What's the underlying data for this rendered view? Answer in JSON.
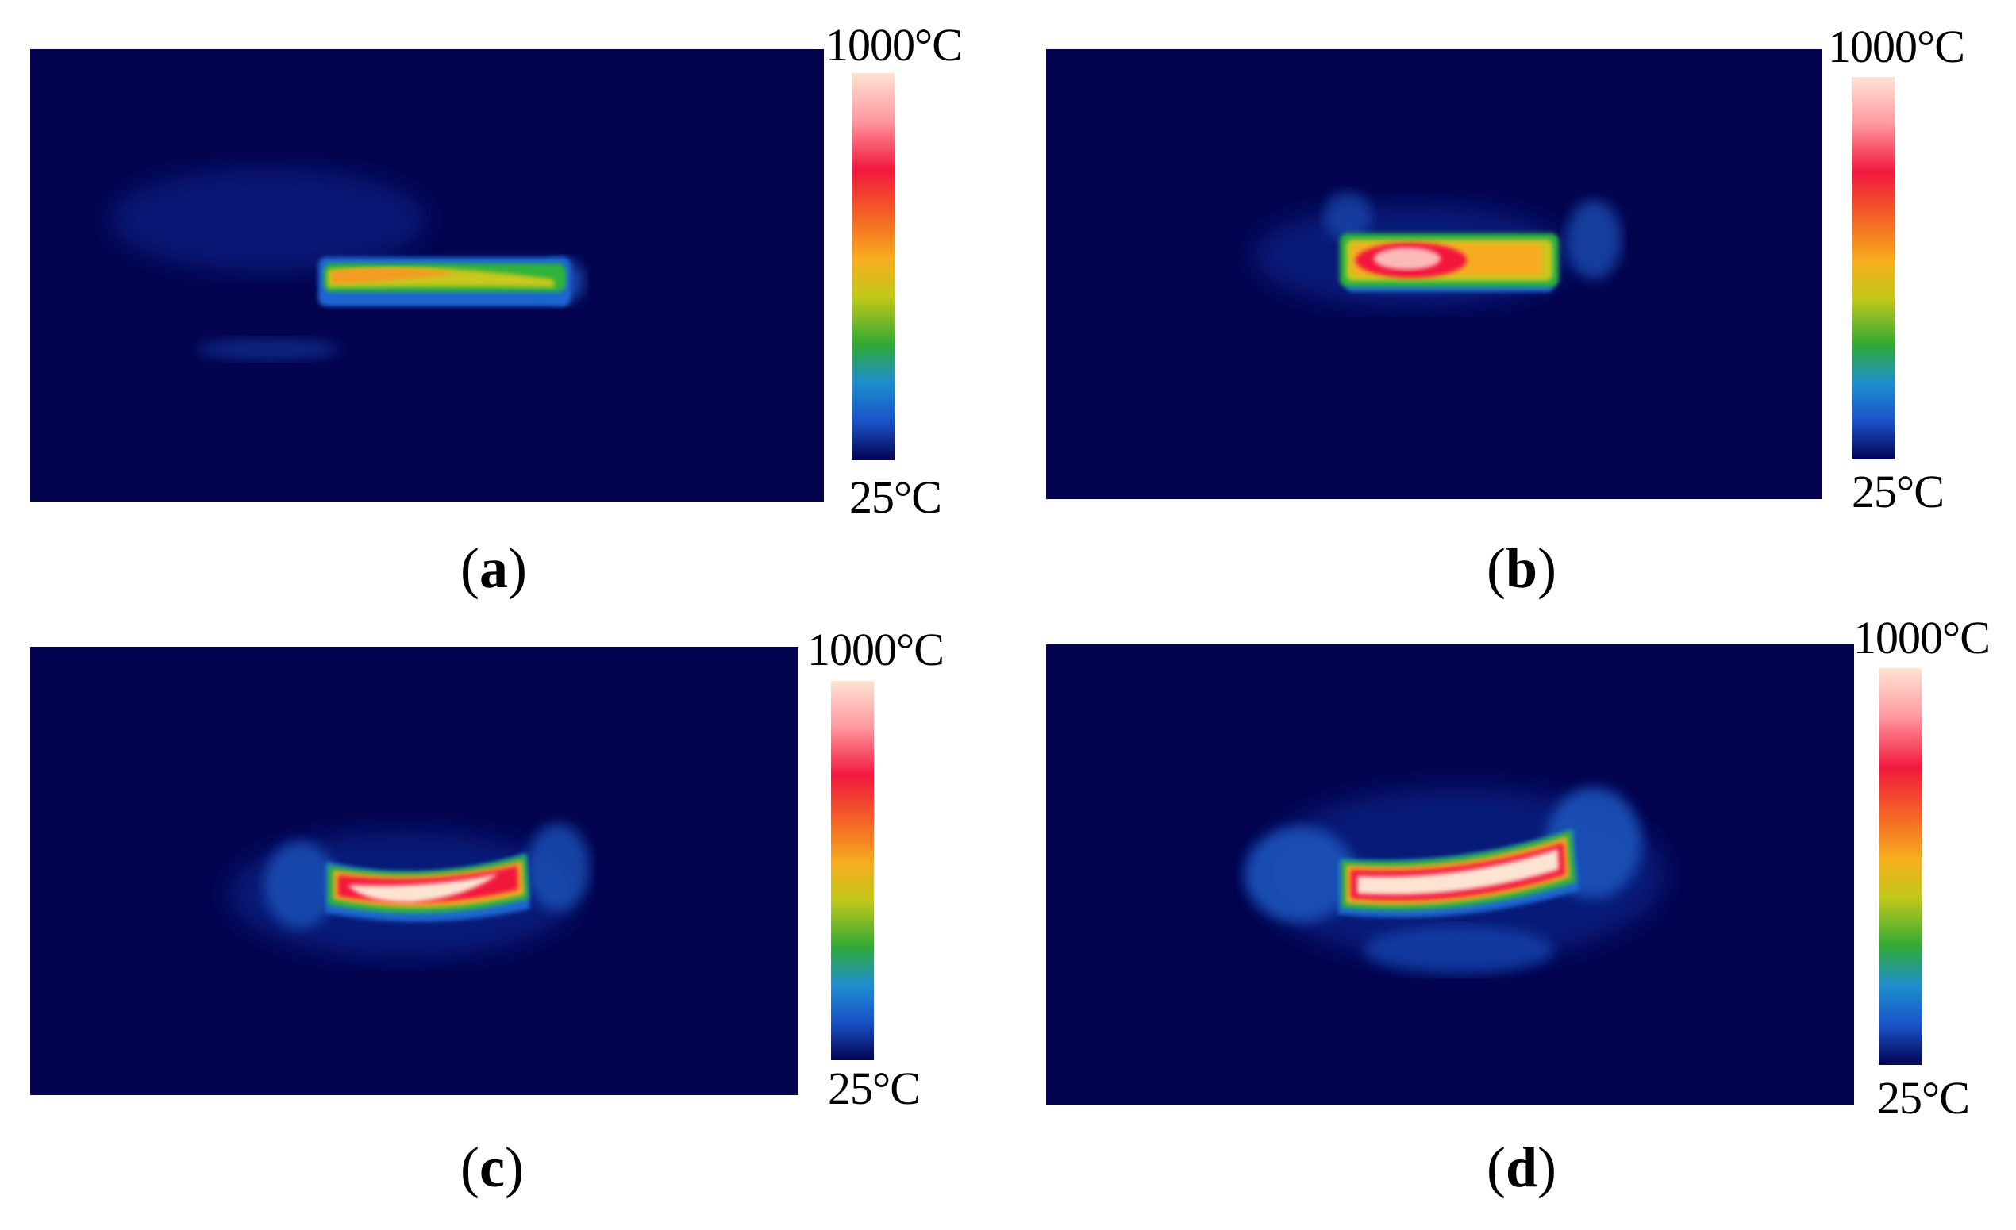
{
  "colors": {
    "background": "#03034f",
    "scale_stops": [
      "#fde4d2",
      "#ff9aa0",
      "#f2183e",
      "#f46a24",
      "#f7ad1e",
      "#c0c81a",
      "#32aa35",
      "#1e8fce",
      "#1a52c8",
      "#030352"
    ]
  },
  "panels": [
    {
      "id": "a",
      "caption_open": "(",
      "caption_letter": "a",
      "caption_close": ")",
      "scale_max": "1000°C",
      "scale_min": "25°C"
    },
    {
      "id": "b",
      "caption_open": "(",
      "caption_letter": "b",
      "caption_close": ")",
      "scale_max": "1000°C",
      "scale_min": "25°C"
    },
    {
      "id": "c",
      "caption_open": "(",
      "caption_letter": "c",
      "caption_close": ")",
      "scale_max": "1000°C",
      "scale_min": "25°C"
    },
    {
      "id": "d",
      "caption_open": "(",
      "caption_letter": "d",
      "caption_close": ")",
      "scale_max": "1000°C",
      "scale_min": "25°C"
    }
  ]
}
